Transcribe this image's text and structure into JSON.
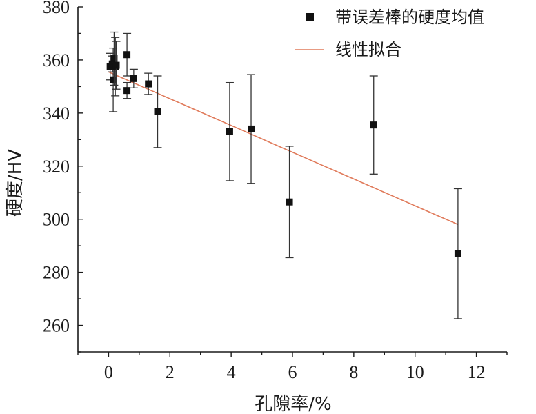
{
  "chart_data": {
    "type": "scatter",
    "xlabel": "孔隙率/%",
    "ylabel": "硬度/HV",
    "xlim": [
      -1,
      13
    ],
    "ylim": [
      250,
      380
    ],
    "xticks": [
      0,
      2,
      4,
      6,
      8,
      10,
      12
    ],
    "yticks": [
      260,
      280,
      300,
      320,
      340,
      360,
      380
    ],
    "legend_position": "top-right",
    "grid": false,
    "series": [
      {
        "name": "带误差棒的硬度均值",
        "kind": "scatter-errorbar",
        "color": "#111111",
        "points": [
          {
            "x": 0.05,
            "y": 357.5,
            "err": 5
          },
          {
            "x": 0.12,
            "y": 358.5,
            "err": 3
          },
          {
            "x": 0.15,
            "y": 352.5,
            "err": 12
          },
          {
            "x": 0.18,
            "y": 360.5,
            "err": 10
          },
          {
            "x": 0.22,
            "y": 357.5,
            "err": 11
          },
          {
            "x": 0.25,
            "y": 358.0,
            "err": 9
          },
          {
            "x": 0.6,
            "y": 362.0,
            "err": 8
          },
          {
            "x": 0.6,
            "y": 348.5,
            "err": 3
          },
          {
            "x": 0.82,
            "y": 353.0,
            "err": 3.5
          },
          {
            "x": 1.3,
            "y": 351.0,
            "err": 4
          },
          {
            "x": 1.6,
            "y": 340.5,
            "err": 13.5
          },
          {
            "x": 3.95,
            "y": 333.0,
            "err": 18.5
          },
          {
            "x": 4.65,
            "y": 334.0,
            "err": 20.5
          },
          {
            "x": 5.9,
            "y": 306.5,
            "err": 21
          },
          {
            "x": 8.65,
            "y": 335.5,
            "err": 18.5
          },
          {
            "x": 11.4,
            "y": 287.0,
            "err": 24.5
          }
        ]
      },
      {
        "name": "线性拟合",
        "kind": "line",
        "color": "#e07a5a",
        "x": [
          0,
          11.4
        ],
        "y": [
          355.5,
          298.0
        ]
      }
    ]
  }
}
